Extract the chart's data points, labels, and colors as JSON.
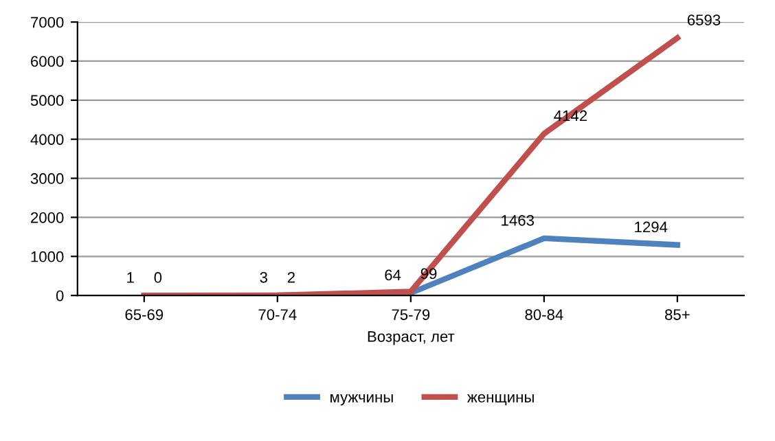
{
  "chart_data": {
    "type": "line",
    "xlabel": "Возраст, лет",
    "categories": [
      "65-69",
      "70-74",
      "75-79",
      "80-84",
      "85+"
    ],
    "series": [
      {
        "name": "мужчины",
        "color": "#4f81bd",
        "values": [
          1,
          3,
          64,
          1463,
          1294
        ]
      },
      {
        "name": "женщины",
        "color": "#c0504d",
        "values": [
          0,
          2,
          99,
          4142,
          6593
        ]
      }
    ],
    "ylim": [
      0,
      7000
    ],
    "yticks": [
      0,
      1000,
      2000,
      3000,
      4000,
      5000,
      6000,
      7000
    ],
    "grid": "y",
    "legend": "bottom",
    "data_labels": true,
    "marker": "none",
    "line_style": "solid"
  }
}
